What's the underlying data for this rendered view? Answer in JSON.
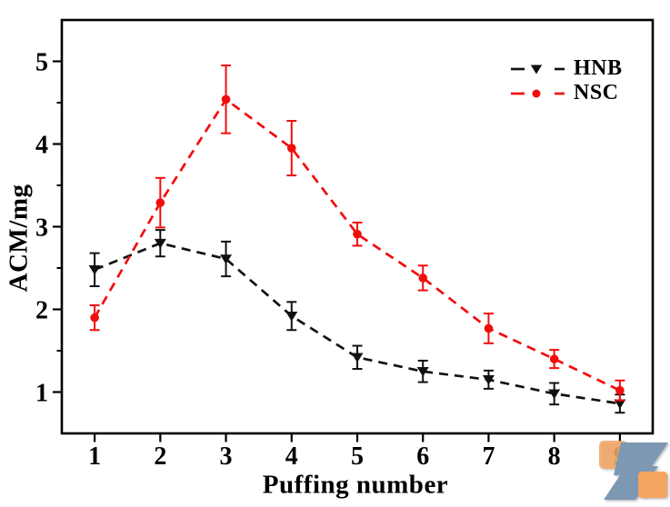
{
  "chart_data": {
    "type": "line",
    "title": "",
    "xlabel": "Puffing number",
    "ylabel": "ACM/mg",
    "x": [
      1,
      2,
      3,
      4,
      5,
      6,
      7,
      8,
      9
    ],
    "x_ticks": [
      1,
      2,
      3,
      4,
      5,
      6,
      7,
      8,
      9
    ],
    "y_ticks": [
      1,
      2,
      3,
      4,
      5
    ],
    "y_minor_ticks": [
      1.5,
      2.5,
      3.5,
      4.5
    ],
    "xlim": [
      0.5,
      9.5
    ],
    "ylim": [
      0.5,
      5.5
    ],
    "grid": false,
    "legend_position": "top-right-inside",
    "series": [
      {
        "name": "HNB",
        "color": "#111111",
        "marker": "triangle-down",
        "line_style": "dashed",
        "values": [
          2.48,
          2.8,
          2.61,
          1.92,
          1.42,
          1.25,
          1.15,
          0.98,
          0.86
        ],
        "errors": [
          0.2,
          0.16,
          0.21,
          0.17,
          0.14,
          0.13,
          0.11,
          0.13,
          0.11
        ]
      },
      {
        "name": "NSC",
        "color": "#f20d0d",
        "marker": "circle",
        "line_style": "dashed",
        "values": [
          1.9,
          3.29,
          4.54,
          3.95,
          2.91,
          2.38,
          1.77,
          1.4,
          1.02
        ],
        "errors": [
          0.15,
          0.3,
          0.41,
          0.33,
          0.14,
          0.15,
          0.18,
          0.11,
          0.12
        ]
      }
    ]
  },
  "logo": {
    "colors": {
      "orange": "#f4a55e",
      "blue": "#7d98b3"
    }
  }
}
